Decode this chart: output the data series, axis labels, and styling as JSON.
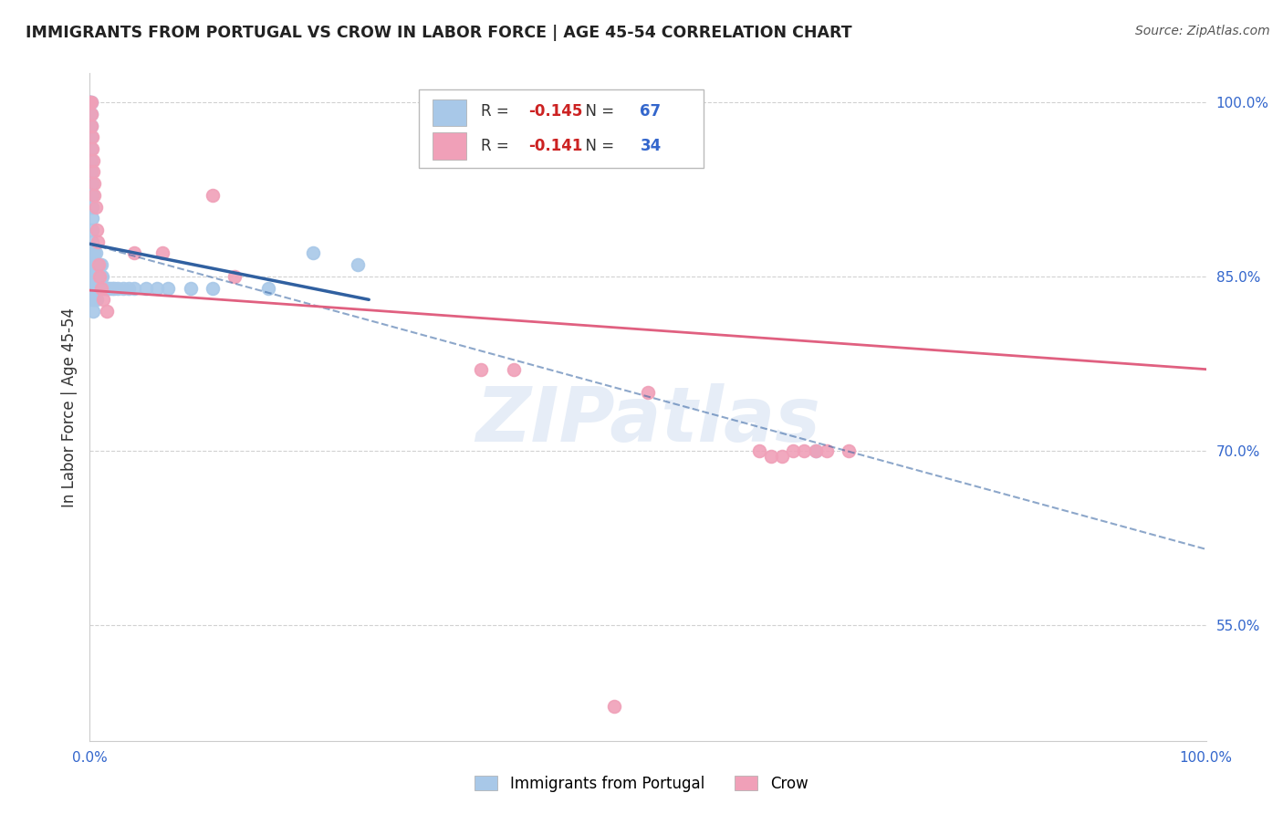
{
  "title": "IMMIGRANTS FROM PORTUGAL VS CROW IN LABOR FORCE | AGE 45-54 CORRELATION CHART",
  "source": "Source: ZipAtlas.com",
  "ylabel": "In Labor Force | Age 45-54",
  "xlim": [
    0.0,
    1.0
  ],
  "ylim": [
    0.45,
    1.025
  ],
  "xticks": [
    0.0,
    0.2,
    0.4,
    0.6,
    0.8,
    1.0
  ],
  "xticklabels": [
    "0.0%",
    "",
    "",
    "",
    "",
    "100.0%"
  ],
  "yticks": [
    0.55,
    0.7,
    0.85,
    1.0
  ],
  "yticklabels": [
    "55.0%",
    "70.0%",
    "85.0%",
    "100.0%"
  ],
  "blue_R": -0.145,
  "blue_N": 67,
  "pink_R": -0.141,
  "pink_N": 34,
  "blue_color": "#a8c8e8",
  "blue_line_color": "#3060a0",
  "pink_color": "#f0a0b8",
  "pink_line_color": "#e06080",
  "blue_scatter_x": [
    0.0,
    0.0,
    0.0,
    0.001,
    0.001,
    0.001,
    0.001,
    0.001,
    0.001,
    0.001,
    0.002,
    0.002,
    0.002,
    0.002,
    0.002,
    0.002,
    0.002,
    0.002,
    0.003,
    0.003,
    0.003,
    0.003,
    0.003,
    0.003,
    0.004,
    0.004,
    0.004,
    0.004,
    0.004,
    0.005,
    0.005,
    0.005,
    0.005,
    0.006,
    0.006,
    0.006,
    0.006,
    0.007,
    0.007,
    0.008,
    0.008,
    0.009,
    0.009,
    0.01,
    0.01,
    0.011,
    0.012,
    0.013,
    0.014,
    0.015,
    0.016,
    0.018,
    0.02,
    0.022,
    0.025,
    0.03,
    0.035,
    0.04,
    0.05,
    0.06,
    0.07,
    0.09,
    0.11,
    0.16,
    0.2,
    0.24,
    0.65
  ],
  "blue_scatter_y": [
    1.0,
    1.0,
    1.0,
    1.0,
    0.99,
    0.98,
    0.97,
    0.96,
    0.95,
    0.94,
    0.93,
    0.92,
    0.91,
    0.9,
    0.89,
    0.88,
    0.87,
    0.86,
    0.87,
    0.86,
    0.85,
    0.84,
    0.83,
    0.82,
    0.87,
    0.86,
    0.85,
    0.84,
    0.83,
    0.87,
    0.86,
    0.85,
    0.84,
    0.86,
    0.85,
    0.84,
    0.83,
    0.86,
    0.85,
    0.86,
    0.85,
    0.86,
    0.85,
    0.86,
    0.85,
    0.85,
    0.84,
    0.84,
    0.84,
    0.84,
    0.84,
    0.84,
    0.84,
    0.84,
    0.84,
    0.84,
    0.84,
    0.84,
    0.84,
    0.84,
    0.84,
    0.84,
    0.84,
    0.84,
    0.87,
    0.86,
    0.7
  ],
  "pink_scatter_x": [
    0.0,
    0.001,
    0.001,
    0.001,
    0.002,
    0.002,
    0.003,
    0.003,
    0.004,
    0.004,
    0.005,
    0.006,
    0.007,
    0.008,
    0.009,
    0.01,
    0.012,
    0.015,
    0.04,
    0.065,
    0.11,
    0.13,
    0.35,
    0.38,
    0.5,
    0.6,
    0.61,
    0.62,
    0.63,
    0.64,
    0.65,
    0.66,
    0.68,
    0.47
  ],
  "pink_scatter_y": [
    1.0,
    1.0,
    0.99,
    0.98,
    0.97,
    0.96,
    0.95,
    0.94,
    0.93,
    0.92,
    0.91,
    0.89,
    0.88,
    0.86,
    0.85,
    0.84,
    0.83,
    0.82,
    0.87,
    0.87,
    0.92,
    0.85,
    0.77,
    0.77,
    0.75,
    0.7,
    0.695,
    0.695,
    0.7,
    0.7,
    0.7,
    0.7,
    0.7,
    0.48
  ],
  "watermark": "ZIPatlas"
}
